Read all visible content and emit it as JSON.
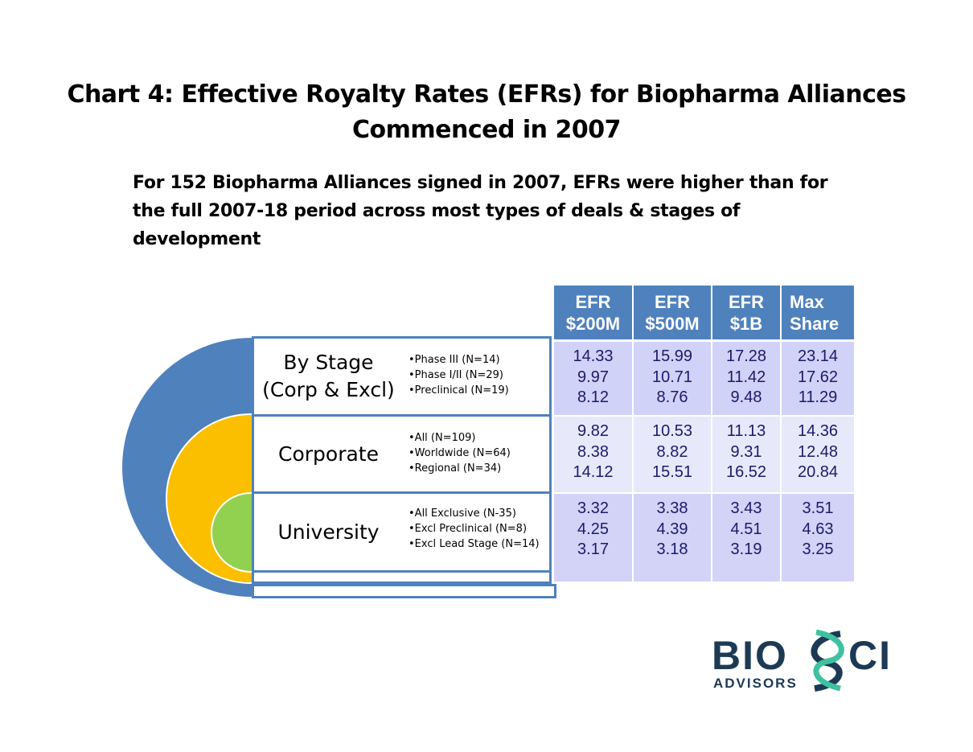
{
  "title": [
    "Chart 4:  Effective Royalty Rates (EFRs) for Biopharma Alliances",
    "Commenced in 2007"
  ],
  "subtitle": [
    "For 152 Biopharma Alliances signed in 2007, EFRs were higher than for",
    "the full 2007-18 period across most types of deals & stages of",
    "development"
  ],
  "categories": [
    {
      "label": [
        "By Stage",
        "(Corp & Excl)"
      ],
      "items": [
        "Phase III (N=14)",
        "Phase I/II (N=29)",
        "Preclinical (N=19)"
      ]
    },
    {
      "label": [
        "Corporate"
      ],
      "items": [
        "All (N=109)",
        "Worldwide (N=64)",
        "Regional (N=34)"
      ]
    },
    {
      "label": [
        "University"
      ],
      "items": [
        "All Exclusive (N-35)",
        "Excl Preclinical (N=8)",
        "Excl Lead Stage (N=14)"
      ]
    }
  ],
  "columns": [
    [
      "EFR",
      "$200M"
    ],
    [
      "EFR",
      "$500M"
    ],
    [
      "EFR",
      "$1B"
    ],
    [
      "Max",
      "Share"
    ]
  ],
  "rows": [
    [
      [
        "14.33",
        "9.97",
        "8.12"
      ],
      [
        "15.99",
        "10.71",
        "8.76"
      ],
      [
        "17.28",
        "11.42",
        "9.48"
      ],
      [
        "23.14",
        "17.62",
        "11.29"
      ]
    ],
    [
      [
        "9.82",
        "8.38",
        "14.12"
      ],
      [
        "10.53",
        "8.82",
        "15.51"
      ],
      [
        "11.13",
        "9.31",
        "16.52"
      ],
      [
        "14.36",
        "12.48",
        "20.84"
      ]
    ],
    [
      [
        "3.32",
        "4.25",
        "3.17"
      ],
      [
        "3.38",
        "4.39",
        "3.18"
      ],
      [
        "3.43",
        "4.51",
        "3.19"
      ],
      [
        "3.51",
        "4.63",
        "3.25"
      ]
    ]
  ],
  "logo": {
    "main": "BIOSCI",
    "sub": "ADVISORS"
  },
  "colors": {
    "blue": "#4f81bd",
    "yellow": "#fbbf00",
    "green": "#92d050",
    "navy": "#1c3a55",
    "teal": "#3ec1a0"
  }
}
